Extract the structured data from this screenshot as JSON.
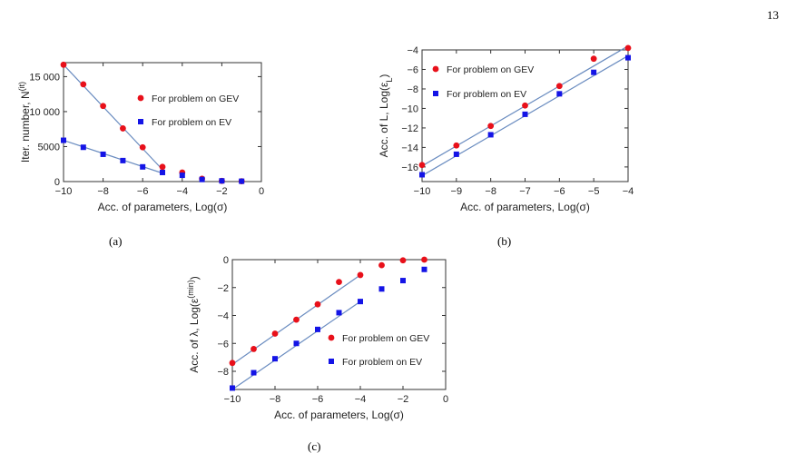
{
  "page_number": "13",
  "captions": [
    "(a)",
    "(b)",
    "(c)"
  ],
  "colors": {
    "gev": "#e8101a",
    "ev": "#1414e6",
    "fit": "#6a8cc0",
    "axis": "#333333"
  },
  "chart_data": [
    {
      "type": "scatter",
      "panel": "a",
      "xlabel": "Acc. of parameters, Log(σ)",
      "ylabel": "Iter. number, N",
      "ylabel_sup": "(it)",
      "xlim": [
        -10,
        0
      ],
      "ylim": [
        0,
        17000
      ],
      "xticks": [
        -10,
        -8,
        -6,
        -4,
        -2,
        0
      ],
      "yticks": [
        0,
        5000,
        10000,
        15000
      ],
      "yticklabels": [
        "0",
        "5000",
        "10 000",
        "15 000"
      ],
      "legend_position": "right",
      "series": [
        {
          "name": "For problem on GEV",
          "marker": "circle",
          "x": [
            -10,
            -9,
            -8,
            -7,
            -6,
            -5,
            -4,
            -3,
            -2,
            -1
          ],
          "y": [
            16700,
            13900,
            10800,
            7600,
            4900,
            2100,
            1300,
            400,
            100,
            50
          ]
        },
        {
          "name": "For problem on EV",
          "marker": "square",
          "x": [
            -10,
            -9,
            -8,
            -7,
            -6,
            -5,
            -4,
            -3,
            -2,
            -1
          ],
          "y": [
            5900,
            4900,
            3900,
            3000,
            2100,
            1300,
            900,
            300,
            100,
            50
          ]
        }
      ],
      "fits": [
        {
          "series": 0,
          "x": [
            -10,
            -5
          ],
          "y": [
            16700,
            1700
          ]
        },
        {
          "series": 1,
          "x": [
            -10,
            -5
          ],
          "y": [
            5900,
            1200
          ]
        }
      ]
    },
    {
      "type": "scatter",
      "panel": "b",
      "xlabel": "Acc. of parameters, Log(σ)",
      "ylabel": "Acc. of L, Log(ε",
      "ylabel_sub": "L",
      "ylabel_end": ")",
      "xlim": [
        -10,
        -4
      ],
      "ylim": [
        -17.5,
        -4
      ],
      "xticks": [
        -10,
        -9,
        -8,
        -7,
        -6,
        -5,
        -4
      ],
      "yticks": [
        -16,
        -14,
        -12,
        -10,
        -8,
        -6,
        -4
      ],
      "legend_position": "top-left",
      "series": [
        {
          "name": "For problem on GEV",
          "marker": "circle",
          "x": [
            -10,
            -9,
            -8,
            -7,
            -6,
            -5,
            -4
          ],
          "y": [
            -15.8,
            -13.8,
            -11.8,
            -9.7,
            -7.7,
            -4.9,
            -3.8
          ]
        },
        {
          "name": "For problem on EV",
          "marker": "square",
          "x": [
            -10,
            -9,
            -8,
            -7,
            -6,
            -5,
            -4
          ],
          "y": [
            -16.8,
            -14.7,
            -12.7,
            -10.6,
            -8.5,
            -6.3,
            -4.8
          ]
        }
      ],
      "fits": [
        {
          "series": 0,
          "x": [
            -10,
            -4
          ],
          "y": [
            -15.9,
            -3.6
          ]
        },
        {
          "series": 1,
          "x": [
            -10,
            -4
          ],
          "y": [
            -16.9,
            -4.6
          ]
        }
      ]
    },
    {
      "type": "scatter",
      "panel": "c",
      "xlabel": "Acc. of parameters, Log(σ)",
      "ylabel": "Acc. of λ, Log(ε",
      "ylabel_sup": "(min)",
      "ylabel_end": ")",
      "xlim": [
        -10,
        0
      ],
      "ylim": [
        -9.3,
        0
      ],
      "xticks": [
        -10,
        -8,
        -6,
        -4,
        -2,
        0
      ],
      "yticks": [
        -8,
        -6,
        -4,
        -2,
        0
      ],
      "legend_position": "right",
      "series": [
        {
          "name": "For problem on GEV",
          "marker": "circle",
          "x": [
            -10,
            -9,
            -8,
            -7,
            -6,
            -5,
            -4,
            -3,
            -2,
            -1
          ],
          "y": [
            -7.4,
            -6.4,
            -5.3,
            -4.3,
            -3.2,
            -1.6,
            -1.1,
            -0.4,
            -0.05,
            0
          ]
        },
        {
          "name": "For problem on EV",
          "marker": "square",
          "x": [
            -10,
            -9,
            -8,
            -7,
            -6,
            -5,
            -4,
            -3,
            -2,
            -1
          ],
          "y": [
            -9.2,
            -8.1,
            -7.1,
            -6.0,
            -5.0,
            -3.8,
            -3.0,
            -2.1,
            -1.5,
            -0.7
          ]
        }
      ],
      "fits": [
        {
          "series": 0,
          "x": [
            -10,
            -4
          ],
          "y": [
            -7.5,
            -1.1
          ]
        },
        {
          "series": 1,
          "x": [
            -10,
            -4
          ],
          "y": [
            -9.3,
            -3.0
          ]
        }
      ]
    }
  ]
}
